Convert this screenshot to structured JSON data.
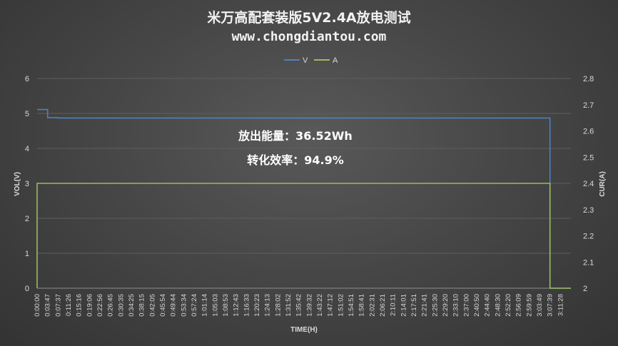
{
  "chart_data": {
    "type": "line",
    "title": "米万高配套装版5V2.4A放电测试",
    "subtitle": "www.chongdiantou.com",
    "xlabel": "TIME(H)",
    "ylabel_left": "VOL(V)",
    "ylabel_right": "CUR(A)",
    "ylim_left": [
      0,
      6
    ],
    "yticks_left": [
      "0",
      "1",
      "2",
      "3",
      "4",
      "5",
      "6"
    ],
    "ylim_right": [
      2,
      2.8
    ],
    "yticks_right": [
      "2",
      "2.1",
      "2.2",
      "2.3",
      "2.4",
      "2.5",
      "2.6",
      "2.7",
      "2.8"
    ],
    "legend_position": "top",
    "grid": "horizontal",
    "categories": [
      "0:00:00",
      "0:03:47",
      "0:07:37",
      "0:11:26",
      "0:15:16",
      "0:19:06",
      "0:22:56",
      "0:26:45",
      "0:30:35",
      "0:34:25",
      "0:38:15",
      "0:42:05",
      "0:45:54",
      "0:49:44",
      "0:53:34",
      "0:57:24",
      "1:01:14",
      "1:05:03",
      "1:08:53",
      "1:12:43",
      "1:16:33",
      "1:20:23",
      "1:24:13",
      "1:28:02",
      "1:31:52",
      "1:35:42",
      "1:39:32",
      "1:43:22",
      "1:47:12",
      "1:51:02",
      "1:54:51",
      "1:58:41",
      "2:02:31",
      "2:06:21",
      "2:10:11",
      "2:14:01",
      "2:17:51",
      "2:21:41",
      "2:25:30",
      "2:29:20",
      "2:33:10",
      "2:37:00",
      "2:40:50",
      "2:44:40",
      "2:48:30",
      "2:52:20",
      "2:56:09",
      "2:59:59",
      "3:03:49",
      "3:07:39",
      "3:11:28"
    ],
    "series": [
      {
        "name": "V",
        "axis": "left",
        "color": "#4f81bd",
        "values": [
          5.11,
          4.88,
          4.87,
          4.87,
          4.87,
          4.87,
          4.87,
          4.87,
          4.87,
          4.87,
          4.87,
          4.87,
          4.87,
          4.87,
          4.87,
          4.87,
          4.87,
          4.87,
          4.87,
          4.87,
          4.87,
          4.87,
          4.87,
          4.87,
          4.87,
          4.87,
          4.87,
          4.87,
          4.87,
          4.87,
          4.87,
          4.87,
          4.87,
          4.87,
          4.87,
          4.87,
          4.87,
          4.87,
          4.87,
          4.87,
          4.87,
          4.87,
          4.87,
          4.87,
          4.87,
          4.87,
          4.87,
          4.87,
          4.87,
          0,
          0
        ]
      },
      {
        "name": "A",
        "axis": "right",
        "color": "#9bbb59",
        "values": [
          2.4,
          2.4,
          2.4,
          2.4,
          2.4,
          2.4,
          2.4,
          2.4,
          2.4,
          2.4,
          2.4,
          2.4,
          2.4,
          2.4,
          2.4,
          2.4,
          2.4,
          2.4,
          2.4,
          2.4,
          2.4,
          2.4,
          2.4,
          2.4,
          2.4,
          2.4,
          2.4,
          2.4,
          2.4,
          2.4,
          2.4,
          2.4,
          2.4,
          2.4,
          2.4,
          2.4,
          2.4,
          2.4,
          2.4,
          2.4,
          2.4,
          2.4,
          2.4,
          2.4,
          2.4,
          2.4,
          2.4,
          2.4,
          2.4,
          2.0,
          2.0
        ]
      }
    ],
    "annotations": [
      "放出能量：36.52Wh",
      "转化效率：94.9%"
    ]
  }
}
